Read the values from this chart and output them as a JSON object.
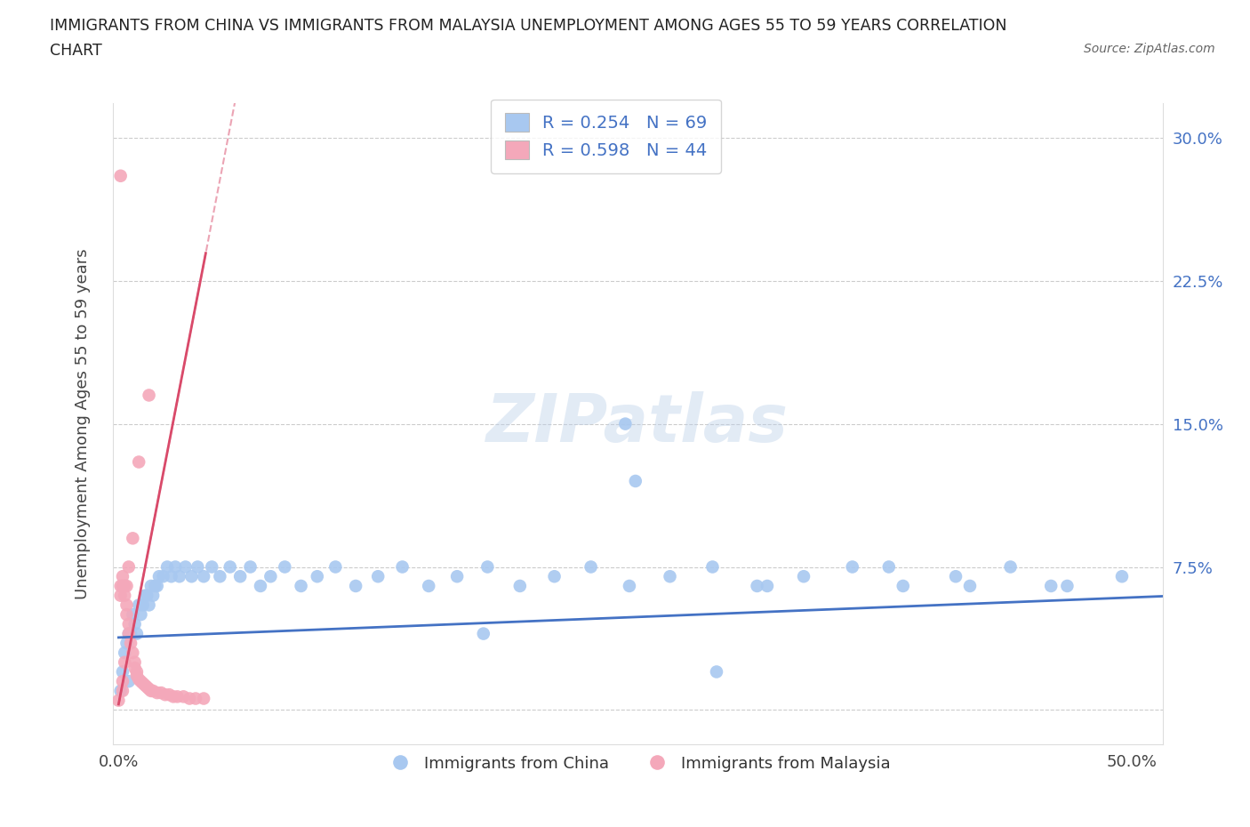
{
  "title_line1": "IMMIGRANTS FROM CHINA VS IMMIGRANTS FROM MALAYSIA UNEMPLOYMENT AMONG AGES 55 TO 59 YEARS CORRELATION",
  "title_line2": "CHART",
  "source": "Source: ZipAtlas.com",
  "ylabel": "Unemployment Among Ages 55 to 59 years",
  "xlim": [
    -0.003,
    0.515
  ],
  "ylim": [
    -0.018,
    0.318
  ],
  "xtick_pos": [
    0.0,
    0.125,
    0.25,
    0.375,
    0.5
  ],
  "xtick_labels": [
    "0.0%",
    "",
    "",
    "",
    "50.0%"
  ],
  "ytick_pos": [
    0.0,
    0.075,
    0.15,
    0.225,
    0.3
  ],
  "ytick_labels_left": [
    "",
    "",
    "",
    "",
    ""
  ],
  "ytick_labels_right": [
    "",
    "7.5%",
    "15.0%",
    "22.5%",
    "30.0%"
  ],
  "china_R": "0.254",
  "china_N": "69",
  "malaysia_R": "0.598",
  "malaysia_N": "44",
  "china_scatter_color": "#a8c8f0",
  "malaysia_scatter_color": "#f4a8ba",
  "china_line_color": "#4472c4",
  "malaysia_line_color": "#d94a6a",
  "grid_color": "#cccccc",
  "bg_color": "#ffffff",
  "china_x": [
    0.001,
    0.002,
    0.003,
    0.004,
    0.005,
    0.005,
    0.006,
    0.007,
    0.008,
    0.009,
    0.01,
    0.011,
    0.012,
    0.013,
    0.014,
    0.015,
    0.016,
    0.017,
    0.018,
    0.019,
    0.02,
    0.022,
    0.024,
    0.026,
    0.028,
    0.03,
    0.033,
    0.036,
    0.039,
    0.042,
    0.046,
    0.05,
    0.055,
    0.06,
    0.065,
    0.07,
    0.075,
    0.082,
    0.09,
    0.098,
    0.107,
    0.117,
    0.128,
    0.14,
    0.153,
    0.167,
    0.182,
    0.198,
    0.215,
    0.233,
    0.252,
    0.272,
    0.293,
    0.315,
    0.338,
    0.362,
    0.387,
    0.413,
    0.44,
    0.468,
    0.495,
    0.25,
    0.18,
    0.38,
    0.32,
    0.42,
    0.295,
    0.255,
    0.46
  ],
  "china_y": [
    0.01,
    0.02,
    0.03,
    0.035,
    0.04,
    0.015,
    0.04,
    0.05,
    0.045,
    0.04,
    0.055,
    0.05,
    0.055,
    0.06,
    0.06,
    0.055,
    0.065,
    0.06,
    0.065,
    0.065,
    0.07,
    0.07,
    0.075,
    0.07,
    0.075,
    0.07,
    0.075,
    0.07,
    0.075,
    0.07,
    0.075,
    0.07,
    0.075,
    0.07,
    0.075,
    0.065,
    0.07,
    0.075,
    0.065,
    0.07,
    0.075,
    0.065,
    0.07,
    0.075,
    0.065,
    0.07,
    0.075,
    0.065,
    0.07,
    0.075,
    0.065,
    0.07,
    0.075,
    0.065,
    0.07,
    0.075,
    0.065,
    0.07,
    0.075,
    0.065,
    0.07,
    0.15,
    0.04,
    0.075,
    0.065,
    0.065,
    0.02,
    0.12,
    0.065
  ],
  "malaysia_x": [
    0.0,
    0.001,
    0.001,
    0.002,
    0.002,
    0.003,
    0.003,
    0.004,
    0.004,
    0.005,
    0.005,
    0.006,
    0.007,
    0.008,
    0.008,
    0.009,
    0.009,
    0.01,
    0.011,
    0.012,
    0.013,
    0.014,
    0.015,
    0.016,
    0.017,
    0.019,
    0.021,
    0.023,
    0.025,
    0.027,
    0.029,
    0.032,
    0.035,
    0.038,
    0.042,
    0.015,
    0.01,
    0.007,
    0.005,
    0.004,
    0.003,
    0.002,
    0.002,
    0.001
  ],
  "malaysia_y": [
    0.005,
    0.06,
    0.065,
    0.065,
    0.07,
    0.065,
    0.06,
    0.055,
    0.05,
    0.045,
    0.04,
    0.035,
    0.03,
    0.025,
    0.022,
    0.02,
    0.018,
    0.016,
    0.015,
    0.014,
    0.013,
    0.012,
    0.011,
    0.01,
    0.01,
    0.009,
    0.009,
    0.008,
    0.008,
    0.007,
    0.007,
    0.007,
    0.006,
    0.006,
    0.006,
    0.165,
    0.13,
    0.09,
    0.075,
    0.065,
    0.025,
    0.015,
    0.01,
    0.28
  ],
  "china_reg_slope": 0.042,
  "china_reg_intercept": 0.038,
  "malaysia_reg_slope": 5.5,
  "malaysia_reg_intercept": 0.003
}
